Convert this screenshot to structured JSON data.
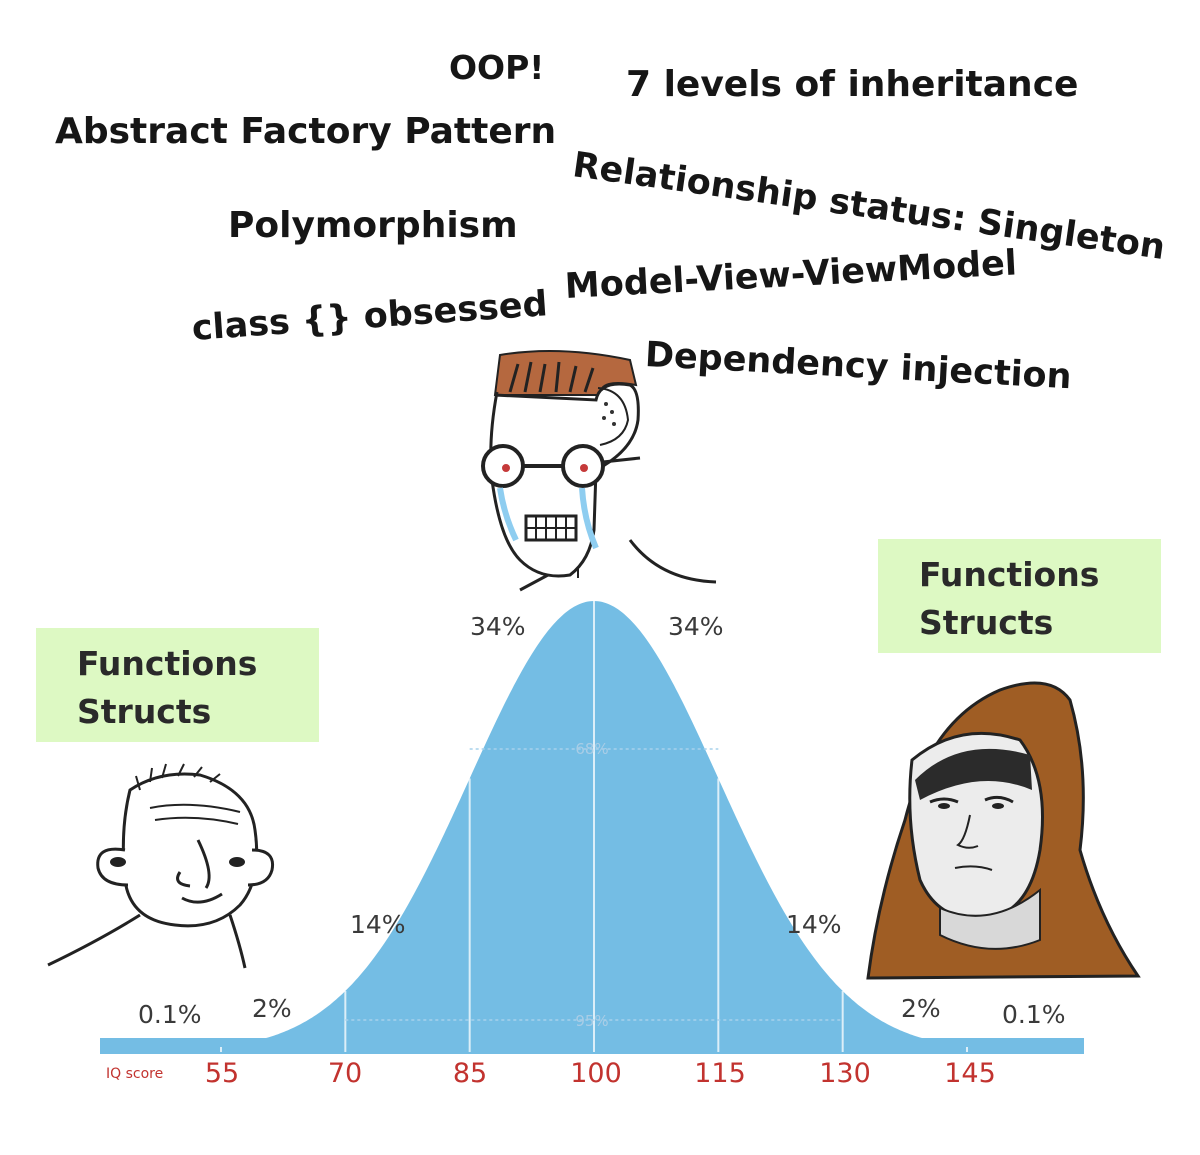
{
  "phrases": {
    "oop": "OOP!",
    "inheritance": "7 levels of inheritance",
    "abstract_factory": "Abstract Factory Pattern",
    "relationship": "Relationship status:  Singleton",
    "polymorphism": "Polymorphism",
    "mvvm": "Model-View-ViewModel",
    "class_obsessed": "class {} obsessed",
    "dependency_injection": "Dependency injection"
  },
  "left_note": {
    "line1": "Functions",
    "line2": "Structs"
  },
  "right_note": {
    "line1": "Functions",
    "line2": "Structs"
  },
  "colors": {
    "curve": "#74bde4",
    "note_bg": "#ddf9c3",
    "tick_text": "#c2332f"
  },
  "chart_data": {
    "type": "area",
    "title": "",
    "xlabel": "IQ score",
    "ylabel": "",
    "distribution": "normal",
    "mean": 100,
    "std_dev": 15,
    "x_ticks": [
      55,
      70,
      85,
      100,
      115,
      130,
      145
    ],
    "x_tick_labels": [
      "55",
      "70",
      "85",
      "100",
      "115",
      "130",
      "145"
    ],
    "bands": [
      {
        "range": "<55",
        "label": "0.1%"
      },
      {
        "range": "55-70",
        "label": "2%"
      },
      {
        "range": "70-85",
        "label": "14%"
      },
      {
        "range": "85-100",
        "label": "34%"
      },
      {
        "range": "100-115",
        "label": "34%"
      },
      {
        "range": "115-130",
        "label": "14%"
      },
      {
        "range": "130-145",
        "label": "2%"
      },
      {
        "range": ">145",
        "label": "0.1%"
      }
    ],
    "inner_labels": [
      {
        "range": "85-115",
        "label": "68%"
      },
      {
        "range": "70-130",
        "label": "95%"
      }
    ],
    "characters": [
      {
        "position": "left tail",
        "icon": "simple-guy-icon"
      },
      {
        "position": "peak",
        "icon": "crying-glasses-guy-icon"
      },
      {
        "position": "right tail",
        "icon": "hooded-monk-icon"
      }
    ]
  }
}
